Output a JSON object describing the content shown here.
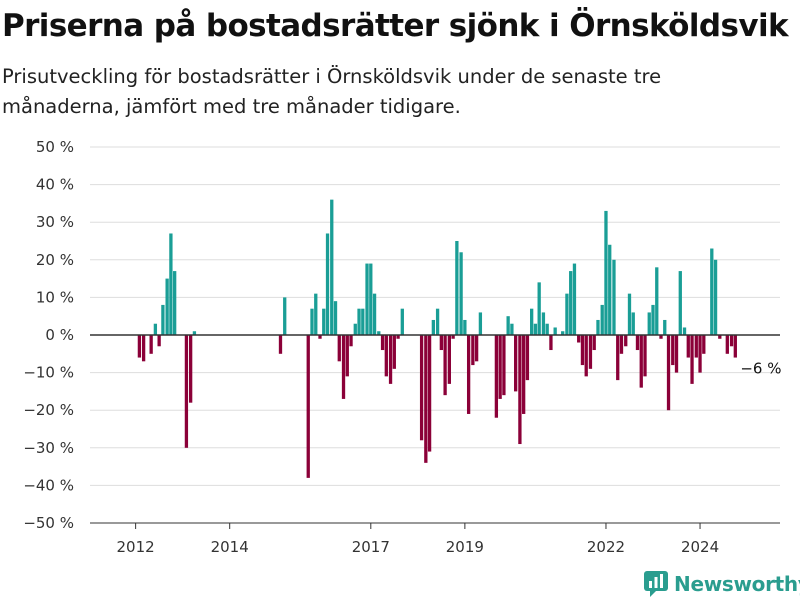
{
  "title": "Priserna på bostadsrätter sjönk i Örnsköldsvik",
  "subtitle": "Prisutveckling för bostadsrätter i Örnsköldsvik under de senaste tre månaderna, jämfört med tre månader tidigare.",
  "brand": {
    "name": "Newsworthy",
    "color": "#2a9d8f"
  },
  "chart_data": {
    "type": "bar",
    "ylim": [
      -50,
      50
    ],
    "y_ticks": [
      50,
      40,
      30,
      20,
      10,
      0,
      -10,
      -20,
      -30,
      -40,
      -50
    ],
    "y_tick_labels": [
      "50 %",
      "40 %",
      "30 %",
      "20 %",
      "10 %",
      "0 %",
      "−10 %",
      "−20 %",
      "−30 %",
      "−40 %",
      "−50 %"
    ],
    "x_tick_labels": [
      "2012",
      "2014",
      "2017",
      "2019",
      "2022",
      "2024"
    ],
    "x_tick_positions": [
      2012.0,
      2014.0,
      2017.0,
      2019.0,
      2022.0,
      2024.0
    ],
    "grid": true,
    "colors": {
      "positive": "#1a9e96",
      "negative": "#8b0038",
      "zero_line": "#333333",
      "grid": "#dddddd"
    },
    "annotation": {
      "text": "−6 %",
      "x": 2024.9,
      "value": -6
    },
    "series": [
      {
        "x": [
          2012.08,
          2012.17,
          2012.33,
          2012.42,
          2012.5,
          2012.58,
          2012.67,
          2012.75,
          2012.83,
          2012.92,
          2013.08,
          2013.17,
          2013.25,
          2015.08,
          2015.17,
          2015.67,
          2015.75,
          2015.83,
          2015.92,
          2016.0,
          2016.08,
          2016.17,
          2016.25,
          2016.33,
          2016.42,
          2016.5,
          2016.58,
          2016.67,
          2016.75,
          2016.83,
          2016.92,
          2017.0,
          2017.08,
          2017.17,
          2017.25,
          2017.33,
          2017.42,
          2017.5,
          2017.58,
          2017.67,
          2018.08,
          2018.17,
          2018.25,
          2018.33,
          2018.42,
          2018.5,
          2018.58,
          2018.67,
          2018.75,
          2018.83,
          2018.92,
          2019.0,
          2019.08,
          2019.17,
          2019.25,
          2019.33,
          2019.67,
          2019.75,
          2019.83,
          2019.92,
          2020.0,
          2020.08,
          2020.17,
          2020.25,
          2020.33,
          2020.42,
          2020.5,
          2020.58,
          2020.67,
          2020.75,
          2020.83,
          2020.92,
          2021.0,
          2021.08,
          2021.17,
          2021.25,
          2021.33,
          2021.42,
          2021.5,
          2021.58,
          2021.67,
          2021.75,
          2021.83,
          2021.92,
          2022.0,
          2022.08,
          2022.17,
          2022.25,
          2022.33,
          2022.42,
          2022.5,
          2022.58,
          2022.67,
          2022.75,
          2022.83,
          2022.92,
          2023.0,
          2023.08,
          2023.17,
          2023.25,
          2023.33,
          2023.42,
          2023.5,
          2023.58,
          2023.67,
          2023.75,
          2023.83,
          2023.92,
          2024.0,
          2024.08,
          2024.25,
          2024.33,
          2024.42,
          2024.58,
          2024.67,
          2024.75
        ],
        "values": [
          -6,
          -7,
          -5,
          3,
          -3,
          8,
          15,
          27,
          17,
          0,
          -30,
          -18,
          1,
          -5,
          10,
          -38,
          7,
          11,
          -1,
          7,
          27,
          36,
          9,
          -7,
          -17,
          -11,
          -3,
          3,
          7,
          7,
          19,
          19,
          11,
          1,
          -4,
          -11,
          -13,
          -9,
          -1,
          7,
          -28,
          -34,
          -31,
          4,
          7,
          -4,
          -16,
          -13,
          -1,
          25,
          22,
          4,
          -21,
          -8,
          -7,
          6,
          -22,
          -17,
          -16,
          5,
          3,
          -15,
          -29,
          -21,
          -12,
          7,
          3,
          14,
          6,
          3,
          -4,
          2,
          0,
          1,
          11,
          17,
          19,
          -2,
          -8,
          -11,
          -9,
          -4,
          4,
          8,
          33,
          24,
          20,
          -12,
          -5,
          -3,
          11,
          6,
          -4,
          -14,
          -11,
          6,
          8,
          18,
          -1,
          4,
          -20,
          -8,
          -10,
          17,
          2,
          -6,
          -13,
          -6,
          -10,
          -5,
          23,
          20,
          -1,
          -5,
          -3,
          -6
        ]
      }
    ]
  }
}
